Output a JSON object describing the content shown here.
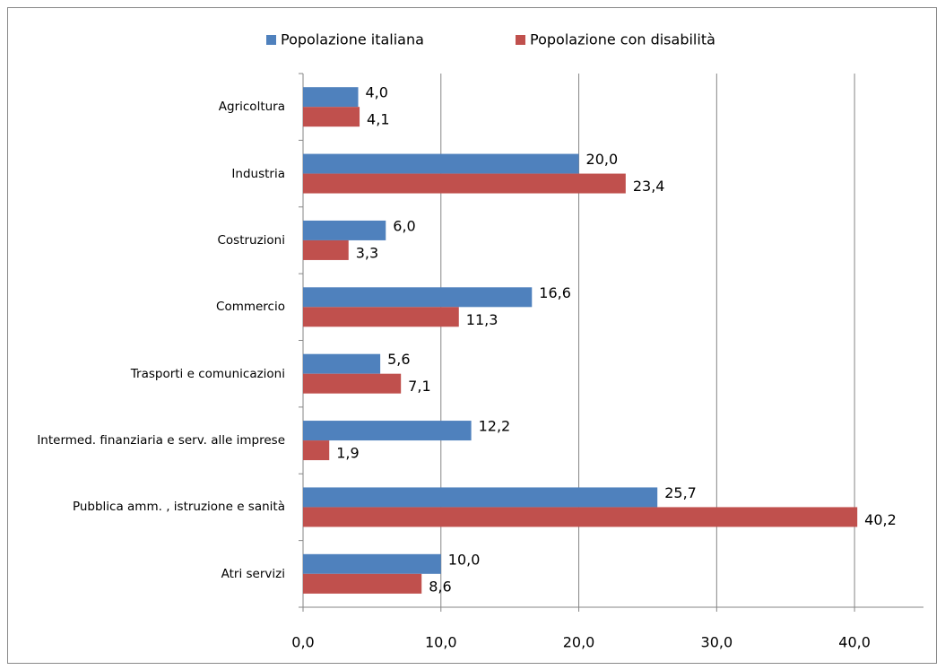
{
  "chart_data": {
    "type": "hbar",
    "categories": [
      "Agricoltura",
      "Industria",
      "Costruzioni",
      "Commercio",
      "Trasporti e comunicazioni",
      "Intermed. finanziaria e serv. alle imprese",
      "Pubblica amm. , istruzione e sanità",
      "Atri servizi"
    ],
    "series": [
      {
        "name": "Popolazione italiana",
        "color": "#4f81bd",
        "values": [
          4.0,
          20.0,
          6.0,
          16.6,
          5.6,
          12.2,
          25.7,
          10.0
        ],
        "value_labels": [
          "4,0",
          "20,0",
          "6,0",
          "16,6",
          "5,6",
          "12,2",
          "25,7",
          "10,0"
        ]
      },
      {
        "name": "Popolazione con disabilità",
        "color": "#c0504d",
        "values": [
          4.1,
          23.4,
          3.3,
          11.3,
          7.1,
          1.9,
          40.2,
          8.6
        ],
        "value_labels": [
          "4,1",
          "23,4",
          "3,3",
          "11,3",
          "7,1",
          "1,9",
          "40,2",
          "8,6"
        ]
      }
    ],
    "xlim": [
      0,
      45
    ],
    "xticks": [
      {
        "value": 0,
        "label": "0,0"
      },
      {
        "value": 10,
        "label": "10,0"
      },
      {
        "value": 20,
        "label": "20,0"
      },
      {
        "value": 30,
        "label": "30,0"
      },
      {
        "value": 40,
        "label": "40,0"
      }
    ],
    "grid": true,
    "legend": "top"
  }
}
